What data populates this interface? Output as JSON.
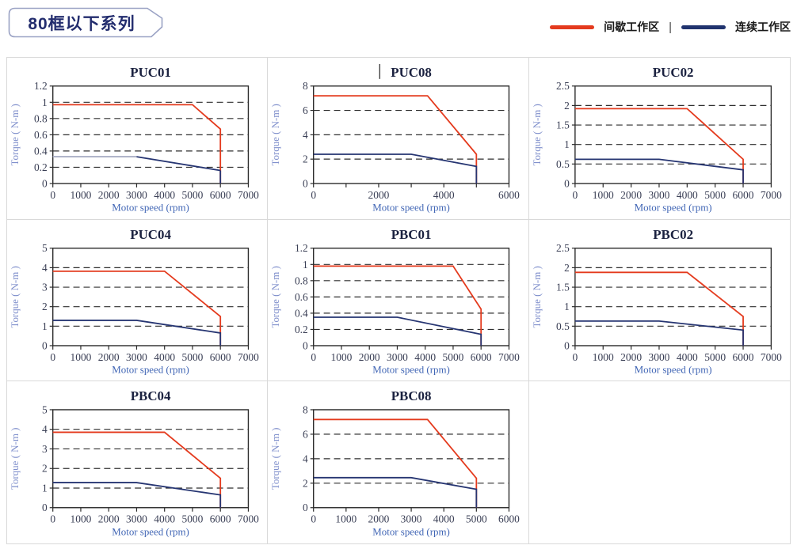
{
  "header": {
    "badge": "80框以下系列"
  },
  "legend": {
    "separator": "|",
    "items": [
      {
        "label": "间歇工作区",
        "color": "#e43a1d"
      },
      {
        "label": "连续工作区",
        "color": "#20336e"
      }
    ]
  },
  "style": {
    "red": "#e43a1d",
    "navy": "#263572",
    "navy_light": "#a9aec4",
    "title_color": "#1b2240",
    "tick_color": "#3a3f55",
    "xlabel_color": "#4166b5",
    "ylabel_color": "#8090cc",
    "axis_color": "#2b2b2b",
    "gridline_color": "#2e2e2e"
  },
  "chart_data": [
    {
      "type": "line",
      "title": "PUC01",
      "xlabel": "Motor speed (rpm)",
      "ylabel": "Torque ( N-m )",
      "xlim": [
        0,
        7000
      ],
      "ylim": [
        0,
        1.2
      ],
      "xticks": [
        0,
        1000,
        2000,
        3000,
        4000,
        5000,
        6000,
        7000
      ],
      "xtick_labels": [
        "0",
        "1000",
        "2000",
        "3000",
        "4000",
        "5000",
        "6000",
        "7000"
      ],
      "yticks": [
        0,
        0.2,
        0.4,
        0.6,
        0.8,
        1,
        1.2
      ],
      "ytick_labels": [
        "0",
        "0.2",
        "0.4",
        "0.6",
        "0.8",
        "1",
        "1.2"
      ],
      "series": [
        {
          "name": "间歇工作区",
          "color": "#e43a1d",
          "points": [
            [
              0,
              0.97
            ],
            [
              5000,
              0.97
            ],
            [
              6000,
              0.67
            ],
            [
              6000,
              0
            ]
          ]
        },
        {
          "name": "连续工作区",
          "color": "#263572",
          "segment_colors": [
            "#a9aec4",
            "#263572",
            "#263572"
          ],
          "points": [
            [
              0,
              0.33
            ],
            [
              3000,
              0.33
            ],
            [
              6000,
              0.16
            ],
            [
              6000,
              0
            ]
          ]
        }
      ]
    },
    {
      "type": "line",
      "title": "PUC08",
      "title_caret": true,
      "xlabel": "Motor speed (rpm)",
      "ylabel": "Torque ( N-m )",
      "xlim": [
        0,
        6000
      ],
      "ylim": [
        0,
        8
      ],
      "xticks": [
        0,
        1000,
        2000,
        3000,
        4000,
        5000,
        6000
      ],
      "xtick_labels": [
        "0",
        "",
        "2000",
        "",
        "4000",
        "",
        "6000"
      ],
      "yticks": [
        0,
        2,
        4,
        6,
        8
      ],
      "ytick_labels": [
        "0",
        "2",
        "4",
        "6",
        "8"
      ],
      "series": [
        {
          "name": "间歇工作区",
          "color": "#e43a1d",
          "points": [
            [
              0,
              7.2
            ],
            [
              3500,
              7.2
            ],
            [
              5000,
              2.4
            ],
            [
              5000,
              0
            ]
          ]
        },
        {
          "name": "连续工作区",
          "color": "#263572",
          "points": [
            [
              0,
              2.4
            ],
            [
              3000,
              2.4
            ],
            [
              5000,
              1.4
            ],
            [
              5000,
              0
            ]
          ]
        }
      ]
    },
    {
      "type": "line",
      "title": "PUC02",
      "xlabel": "Motor speed (rpm)",
      "ylabel": "Torque ( N-m )",
      "xlim": [
        0,
        7000
      ],
      "ylim": [
        0,
        2.5
      ],
      "xticks": [
        0,
        1000,
        2000,
        3000,
        4000,
        5000,
        6000,
        7000
      ],
      "xtick_labels": [
        "0",
        "1000",
        "2000",
        "3000",
        "4000",
        "5000",
        "6000",
        "7000"
      ],
      "yticks": [
        0,
        0.5,
        1,
        1.5,
        2,
        2.5
      ],
      "ytick_labels": [
        "0",
        "0.5",
        "1",
        "1.5",
        "2",
        "2.5"
      ],
      "series": [
        {
          "name": "间歇工作区",
          "color": "#e43a1d",
          "points": [
            [
              0,
              1.92
            ],
            [
              4000,
              1.92
            ],
            [
              6000,
              0.62
            ],
            [
              6000,
              0
            ]
          ]
        },
        {
          "name": "连续工作区",
          "color": "#263572",
          "points": [
            [
              0,
              0.62
            ],
            [
              3000,
              0.62
            ],
            [
              6000,
              0.35
            ],
            [
              6000,
              0
            ]
          ]
        }
      ]
    },
    {
      "type": "line",
      "title": "PUC04",
      "xlabel": "Motor speed (rpm)",
      "ylabel": "Torque ( N-m )",
      "xlim": [
        0,
        7000
      ],
      "ylim": [
        0,
        5
      ],
      "xticks": [
        0,
        1000,
        2000,
        3000,
        4000,
        5000,
        6000,
        7000
      ],
      "xtick_labels": [
        "0",
        "1000",
        "2000",
        "3000",
        "4000",
        "5000",
        "6000",
        "7000"
      ],
      "yticks": [
        0,
        1,
        2,
        3,
        4,
        5
      ],
      "ytick_labels": [
        "0",
        "1",
        "2",
        "3",
        "4",
        "5"
      ],
      "series": [
        {
          "name": "间歇工作区",
          "color": "#e43a1d",
          "points": [
            [
              0,
              3.82
            ],
            [
              4000,
              3.82
            ],
            [
              6000,
              1.5
            ],
            [
              6000,
              0
            ]
          ]
        },
        {
          "name": "连续工作区",
          "color": "#263572",
          "points": [
            [
              0,
              1.3
            ],
            [
              3000,
              1.3
            ],
            [
              6000,
              0.65
            ],
            [
              6000,
              0
            ]
          ]
        }
      ]
    },
    {
      "type": "line",
      "title": "PBC01",
      "xlabel": "Motor speed (rpm)",
      "ylabel": "Torque ( N-m )",
      "xlim": [
        0,
        7000
      ],
      "ylim": [
        0,
        1.2
      ],
      "xticks": [
        0,
        1000,
        2000,
        3000,
        4000,
        5000,
        6000,
        7000
      ],
      "xtick_labels": [
        "0",
        "1000",
        "2000",
        "3000",
        "4000",
        "5000",
        "6000",
        "7000"
      ],
      "yticks": [
        0,
        0.2,
        0.4,
        0.6,
        0.8,
        1,
        1.2
      ],
      "ytick_labels": [
        "0",
        "0.2",
        "0.4",
        "0.6",
        "0.8",
        "1",
        "1.2"
      ],
      "series": [
        {
          "name": "间歇工作区",
          "color": "#e43a1d",
          "points": [
            [
              0,
              0.98
            ],
            [
              5000,
              0.98
            ],
            [
              6000,
              0.45
            ],
            [
              6000,
              0
            ]
          ]
        },
        {
          "name": "连续工作区",
          "color": "#263572",
          "points": [
            [
              0,
              0.35
            ],
            [
              3000,
              0.35
            ],
            [
              6000,
              0.14
            ],
            [
              6000,
              0
            ]
          ]
        }
      ]
    },
    {
      "type": "line",
      "title": "PBC02",
      "xlabel": "Motor speed (rpm)",
      "ylabel": "Torque ( N-m )",
      "xlim": [
        0,
        7000
      ],
      "ylim": [
        0,
        2.5
      ],
      "xticks": [
        0,
        1000,
        2000,
        3000,
        4000,
        5000,
        6000,
        7000
      ],
      "xtick_labels": [
        "0",
        "1000",
        "2000",
        "3000",
        "4000",
        "5000",
        "6000",
        "7000"
      ],
      "yticks": [
        0,
        0.5,
        1,
        1.5,
        2,
        2.5
      ],
      "ytick_labels": [
        "0",
        "0.5",
        "1",
        "1.5",
        "2",
        "2.5"
      ],
      "series": [
        {
          "name": "间歇工作区",
          "color": "#e43a1d",
          "points": [
            [
              0,
              1.88
            ],
            [
              4000,
              1.88
            ],
            [
              6000,
              0.75
            ],
            [
              6000,
              0
            ]
          ]
        },
        {
          "name": "连续工作区",
          "color": "#263572",
          "points": [
            [
              0,
              0.63
            ],
            [
              3000,
              0.63
            ],
            [
              6000,
              0.4
            ],
            [
              6000,
              0
            ]
          ]
        }
      ]
    },
    {
      "type": "line",
      "title": "PBC04",
      "xlabel": "Motor speed (rpm)",
      "ylabel": "Torque ( N-m )",
      "xlim": [
        0,
        7000
      ],
      "ylim": [
        0,
        5
      ],
      "xticks": [
        0,
        1000,
        2000,
        3000,
        4000,
        5000,
        6000,
        7000
      ],
      "xtick_labels": [
        "0",
        "1000",
        "2000",
        "3000",
        "4000",
        "5000",
        "6000",
        "7000"
      ],
      "yticks": [
        0,
        1,
        2,
        3,
        4,
        5
      ],
      "ytick_labels": [
        "0",
        "1",
        "2",
        "3",
        "4",
        "5"
      ],
      "series": [
        {
          "name": "间歇工作区",
          "color": "#e43a1d",
          "points": [
            [
              0,
              3.85
            ],
            [
              4000,
              3.85
            ],
            [
              6000,
              1.5
            ],
            [
              6000,
              0
            ]
          ]
        },
        {
          "name": "连续工作区",
          "color": "#263572",
          "points": [
            [
              0,
              1.28
            ],
            [
              3000,
              1.28
            ],
            [
              6000,
              0.65
            ],
            [
              6000,
              0
            ]
          ]
        }
      ]
    },
    {
      "type": "line",
      "title": "PBC08",
      "xlabel": "Motor speed (rpm)",
      "ylabel": "Torque ( N-m )",
      "xlim": [
        0,
        6000
      ],
      "ylim": [
        0,
        8
      ],
      "xticks": [
        0,
        1000,
        2000,
        3000,
        4000,
        5000,
        6000
      ],
      "xtick_labels": [
        "0",
        "1000",
        "2000",
        "3000",
        "4000",
        "5000",
        "6000"
      ],
      "yticks": [
        0,
        2,
        4,
        6,
        8
      ],
      "ytick_labels": [
        "0",
        "2",
        "4",
        "6",
        "8"
      ],
      "series": [
        {
          "name": "间歇工作区",
          "color": "#e43a1d",
          "points": [
            [
              0,
              7.2
            ],
            [
              3500,
              7.2
            ],
            [
              5000,
              2.4
            ],
            [
              5000,
              0
            ]
          ]
        },
        {
          "name": "连续工作区",
          "color": "#263572",
          "points": [
            [
              0,
              2.45
            ],
            [
              3000,
              2.45
            ],
            [
              5000,
              1.5
            ],
            [
              5000,
              0
            ]
          ]
        }
      ]
    }
  ]
}
